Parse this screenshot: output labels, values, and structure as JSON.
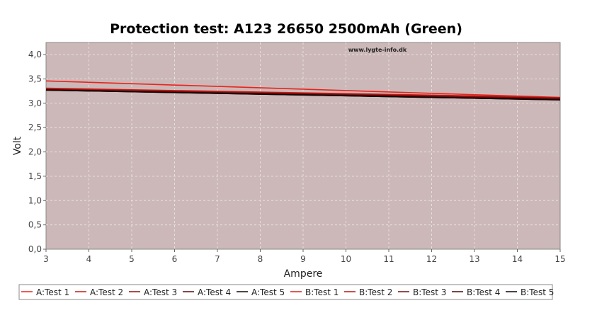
{
  "chart_data": {
    "type": "line",
    "title": "Protection test: A123 26650 2500mAh (Green)",
    "xlabel": "Ampere",
    "ylabel": "Volt",
    "watermark": "www.lygte-info.dk",
    "xlim": [
      3,
      15
    ],
    "ylim": [
      0,
      4.25
    ],
    "xticks": [
      3,
      4,
      5,
      6,
      7,
      8,
      9,
      10,
      11,
      12,
      13,
      14,
      15
    ],
    "yticks": [
      "0,0",
      "0,5",
      "1,0",
      "1,5",
      "2,0",
      "2,5",
      "3,0",
      "3,5",
      "4,0"
    ],
    "grid": true,
    "legend_position": "bottom",
    "plot_background": "#ccb8b8",
    "series": [
      {
        "name": "A:Test 1",
        "color": "#e8241c",
        "x": [
          3,
          15
        ],
        "y": [
          3.46,
          3.12
        ]
      },
      {
        "name": "A:Test 2",
        "color": "#c01a14",
        "x": [
          3,
          15
        ],
        "y": [
          3.3,
          3.11
        ]
      },
      {
        "name": "A:Test 3",
        "color": "#8a1010",
        "x": [
          3,
          15
        ],
        "y": [
          3.29,
          3.1
        ]
      },
      {
        "name": "A:Test 4",
        "color": "#5a0a0a",
        "x": [
          3,
          15
        ],
        "y": [
          3.28,
          3.09
        ]
      },
      {
        "name": "A:Test 5",
        "color": "#1a0505",
        "x": [
          3,
          15
        ],
        "y": [
          3.27,
          3.07
        ]
      },
      {
        "name": "B:Test 1",
        "color": "#d8201a",
        "x": [
          3,
          15
        ],
        "y": [
          3.31,
          3.12
        ]
      },
      {
        "name": "B:Test 2",
        "color": "#b01812",
        "x": [
          3,
          15
        ],
        "y": [
          3.3,
          3.11
        ]
      },
      {
        "name": "B:Test 3",
        "color": "#7a0e0e",
        "x": [
          3,
          15
        ],
        "y": [
          3.28,
          3.1
        ]
      },
      {
        "name": "B:Test 4",
        "color": "#4a0808",
        "x": [
          3,
          15
        ],
        "y": [
          3.28,
          3.08
        ]
      },
      {
        "name": "B:Test 5",
        "color": "#100303",
        "x": [
          3,
          15
        ],
        "y": [
          3.27,
          3.07
        ]
      }
    ]
  }
}
